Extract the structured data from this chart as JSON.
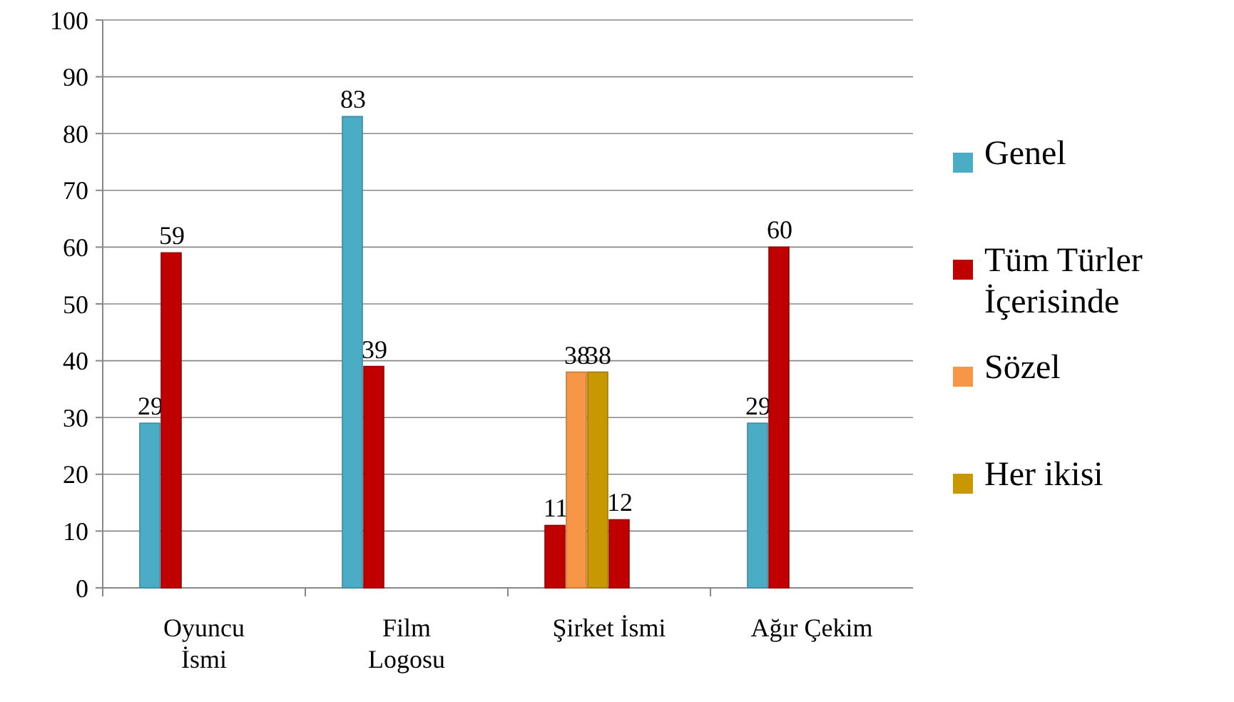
{
  "chart_data": {
    "type": "bar",
    "categories": [
      "Oyuncu İsmi",
      "Film Logosu",
      "Şirket İsmi",
      "Ağır Çekim"
    ],
    "series": [
      {
        "name": "Genel",
        "color": "#4bacc6",
        "values": [
          29,
          83,
          null,
          29
        ]
      },
      {
        "name": "Tüm Türler İçerisinde",
        "color": "#c00000",
        "values": [
          59,
          39,
          11,
          60
        ]
      },
      {
        "name": "Sözel",
        "color": "#f79646",
        "values": [
          null,
          null,
          38,
          null
        ]
      },
      {
        "name": "Her ikisi",
        "color": "#c89800",
        "values": [
          null,
          null,
          38,
          null
        ]
      },
      {
        "color": "#c00000",
        "values": [
          null,
          null,
          12,
          null
        ]
      }
    ],
    "ylim": [
      0,
      100
    ],
    "yticks": [
      0,
      10,
      20,
      30,
      40,
      50,
      60,
      70,
      80,
      90,
      100
    ],
    "grid": "y",
    "legend": "right",
    "data_labels": true
  }
}
